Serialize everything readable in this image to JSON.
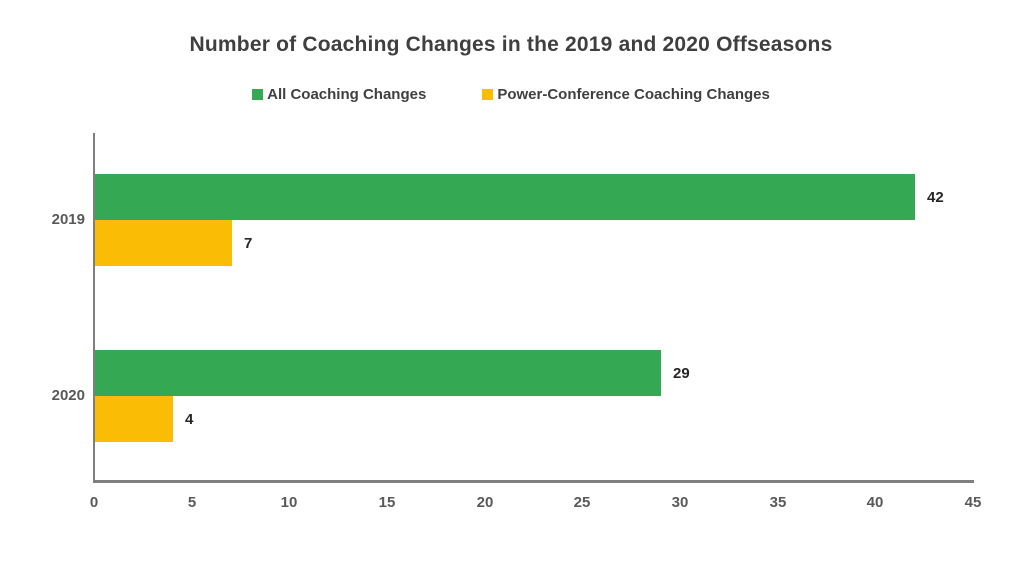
{
  "chart_data": {
    "type": "bar",
    "orientation": "horizontal",
    "title": "Number of Coaching Changes in the 2019 and 2020 Offseasons",
    "categories": [
      "2019",
      "2020"
    ],
    "series": [
      {
        "name": "All Coaching Changes",
        "color": "#34a853",
        "values": [
          42,
          29
        ]
      },
      {
        "name": "Power-Conference Coaching Changes",
        "color": "#fbbc05",
        "values": [
          7,
          4
        ]
      }
    ],
    "xlabel": "",
    "ylabel": "",
    "xlim": [
      0,
      45
    ],
    "x_ticks": [
      0,
      5,
      10,
      15,
      20,
      25,
      30,
      35,
      40,
      45
    ],
    "grid": false,
    "legend_position": "top",
    "data_labels_shown": true,
    "axis_color": "#7f7f7f",
    "title_color": "#3f3f3f",
    "label_color": "#595959",
    "value_label_color": "#262626",
    "background": "#ffffff"
  }
}
